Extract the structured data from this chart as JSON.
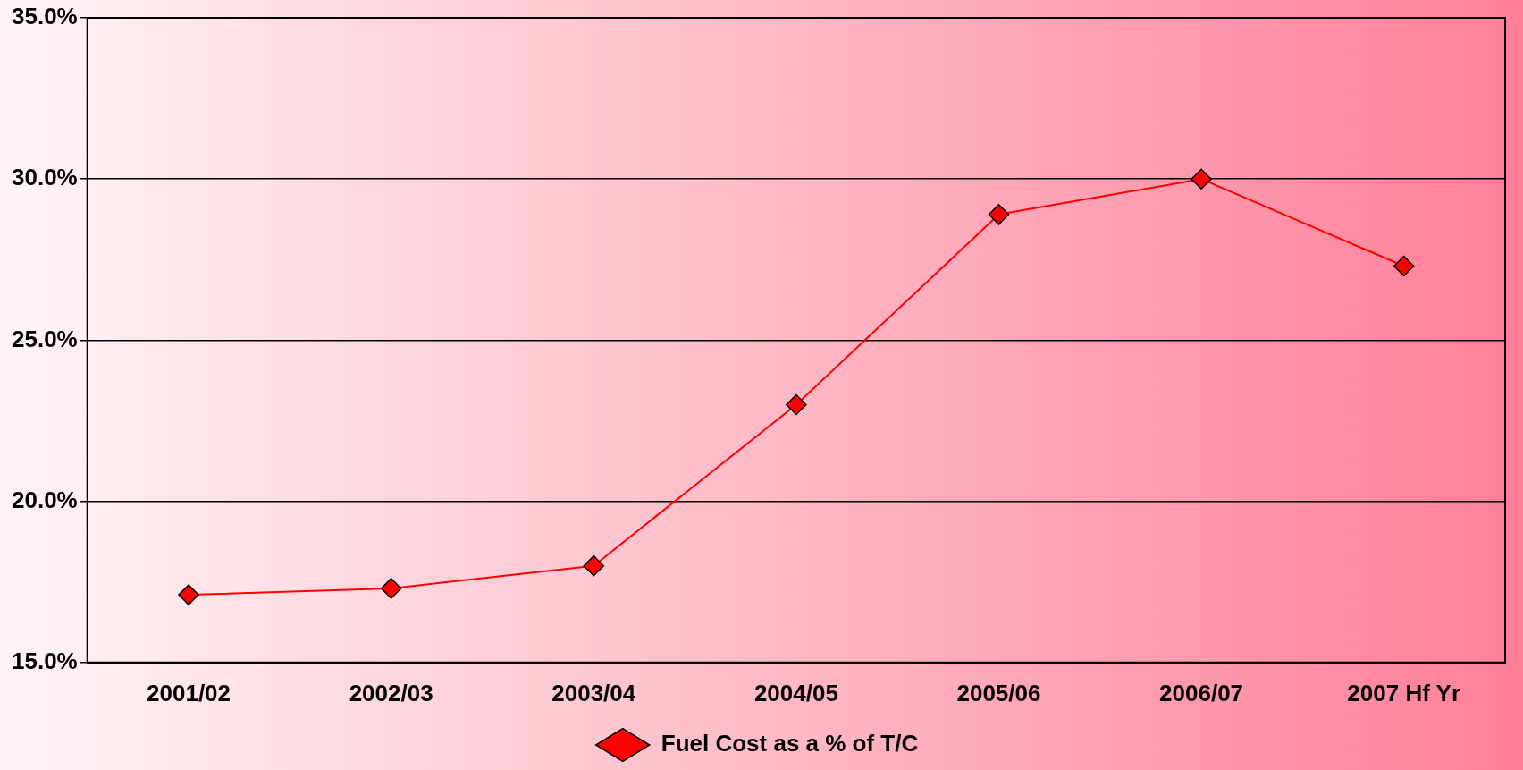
{
  "chart_data": {
    "type": "line",
    "categories": [
      "2001/02",
      "2002/03",
      "2003/04",
      "2004/05",
      "2005/06",
      "2006/07",
      "2007 Hf Yr"
    ],
    "series": [
      {
        "name": "Fuel Cost as a % of T/C",
        "color": "#ff0000",
        "values": [
          17.1,
          17.3,
          18.0,
          23.0,
          28.9,
          30.0,
          27.3
        ]
      }
    ],
    "ylim": [
      15,
      35
    ],
    "yticks": [
      {
        "value": 15,
        "label": "15.0%"
      },
      {
        "value": 20,
        "label": "20.0%"
      },
      {
        "value": 25,
        "label": "25.0%"
      },
      {
        "value": 30,
        "label": "30.0%"
      },
      {
        "value": 35,
        "label": "35.0%"
      }
    ],
    "grid": "y",
    "legend": "bottom",
    "marker": "diamond",
    "line_style": "solid"
  }
}
